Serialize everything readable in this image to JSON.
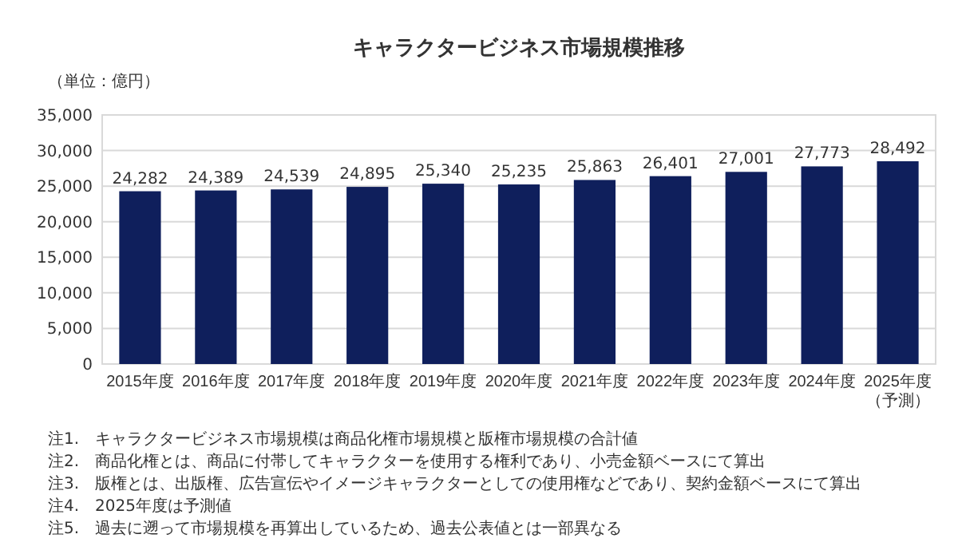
{
  "chart_data": {
    "type": "bar",
    "title": "キャラクタービジネス市場規模推移",
    "ylabel": "（単位：億円）",
    "categories": [
      "2015年度",
      "2016年度",
      "2017年度",
      "2018年度",
      "2019年度",
      "2020年度",
      "2021年度",
      "2022年度",
      "2023年度",
      "2024年度",
      "2025年度（予測）"
    ],
    "values": [
      24282,
      24389,
      24539,
      24895,
      25340,
      25235,
      25863,
      26401,
      27001,
      27773,
      28492
    ],
    "value_labels": [
      "24,282",
      "24,389",
      "24,539",
      "24,895",
      "25,340",
      "25,235",
      "25,863",
      "26,401",
      "27,001",
      "27,773",
      "28,492"
    ],
    "color": "#0f1f5c",
    "ylim": [
      0,
      35000
    ],
    "yticks": [
      {
        "value": 0,
        "label": "0"
      },
      {
        "value": 5000,
        "label": "5,000"
      },
      {
        "value": 10000,
        "label": "10,000"
      },
      {
        "value": 15000,
        "label": "15,000"
      },
      {
        "value": 20000,
        "label": "20,000"
      },
      {
        "value": 25000,
        "label": "25,000"
      },
      {
        "value": 30000,
        "label": "30,000"
      },
      {
        "value": 35000,
        "label": "35,000"
      }
    ],
    "grid": "y",
    "annotations": [
      "注1.　キャラクタービジネス市場規模は商品化権市場規模と版権市場規模の合計値",
      "注2.　商品化権とは、商品に付帯してキャラクターを使用する権利であり、小売金額ベースにて算出",
      "注3.　版権とは、出版権、広告宣伝やイメージキャラクターとしての使用権などであり、契約金額ベースにて算出",
      "注4.　2025年度は予測値",
      "注5.　過去に遡って市場規模を再算出しているため、過去公表値とは一部異なる"
    ]
  }
}
